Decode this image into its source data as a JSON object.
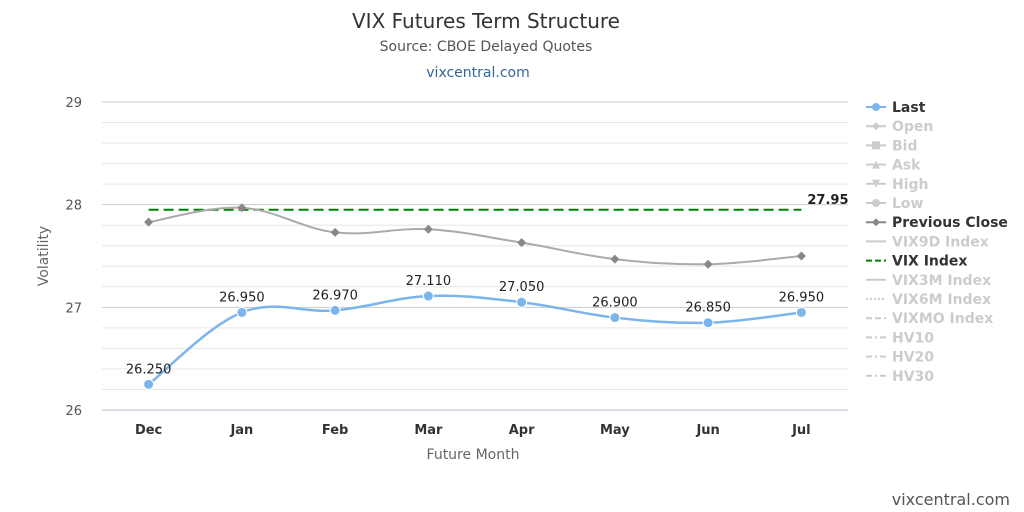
{
  "chart_data": {
    "type": "line",
    "title": "VIX Futures Term Structure",
    "subtitle": "Source: CBOE Delayed Quotes",
    "link_text": "vixcentral.com",
    "credit": "vixcentral.com",
    "xlabel": "Future Month",
    "ylabel": "Volatility",
    "categories": [
      "Dec",
      "Jan",
      "Feb",
      "Mar",
      "Apr",
      "May",
      "Jun",
      "Jul"
    ],
    "ylim": [
      26,
      29
    ],
    "yticks": [
      "26",
      "27",
      "28",
      "29"
    ],
    "grid": true,
    "legend_position": "right",
    "series": [
      {
        "name": "Last",
        "color": "#7cb5ec",
        "values": [
          26.25,
          26.95,
          26.97,
          27.11,
          27.05,
          26.9,
          26.85,
          26.95
        ],
        "labels": [
          "26.250",
          "26.950",
          "26.970",
          "27.110",
          "27.050",
          "26.900",
          "26.850",
          "26.950"
        ]
      },
      {
        "name": "Previous Close",
        "color": "#aaaaaa",
        "values": [
          27.83,
          27.97,
          27.73,
          27.76,
          27.63,
          27.47,
          27.42,
          27.5
        ]
      }
    ],
    "vix_index": {
      "name": "VIX Index",
      "value": 27.95,
      "label": "27.95",
      "color": "#008000"
    },
    "legend": [
      {
        "name": "Last",
        "active": true,
        "color": "#7cb5ec",
        "symbol": "circle",
        "line": "solid"
      },
      {
        "name": "Open",
        "active": false,
        "color": "#cccccc",
        "symbol": "diamond",
        "line": "solid"
      },
      {
        "name": "Bid",
        "active": false,
        "color": "#cccccc",
        "symbol": "square",
        "line": "solid"
      },
      {
        "name": "Ask",
        "active": false,
        "color": "#cccccc",
        "symbol": "triangle",
        "line": "solid"
      },
      {
        "name": "High",
        "active": false,
        "color": "#cccccc",
        "symbol": "triangle-down",
        "line": "solid"
      },
      {
        "name": "Low",
        "active": false,
        "color": "#cccccc",
        "symbol": "circle",
        "line": "solid"
      },
      {
        "name": "Previous Close",
        "active": true,
        "color": "#888888",
        "symbol": "diamond",
        "line": "solid"
      },
      {
        "name": "VIX9D Index",
        "active": false,
        "color": "#cccccc",
        "symbol": "none",
        "line": "solid"
      },
      {
        "name": "VIX Index",
        "active": true,
        "color": "#008000",
        "symbol": "none",
        "line": "dashed"
      },
      {
        "name": "VIX3M Index",
        "active": false,
        "color": "#cccccc",
        "symbol": "none",
        "line": "solid"
      },
      {
        "name": "VIX6M Index",
        "active": false,
        "color": "#cccccc",
        "symbol": "none",
        "line": "dotted"
      },
      {
        "name": "VIXMO Index",
        "active": false,
        "color": "#cccccc",
        "symbol": "none",
        "line": "dashed"
      },
      {
        "name": "HV10",
        "active": false,
        "color": "#cccccc",
        "symbol": "none",
        "line": "dashdot"
      },
      {
        "name": "HV20",
        "active": false,
        "color": "#cccccc",
        "symbol": "none",
        "line": "dashdot"
      },
      {
        "name": "HV30",
        "active": false,
        "color": "#cccccc",
        "symbol": "none",
        "line": "dashdot"
      }
    ]
  }
}
